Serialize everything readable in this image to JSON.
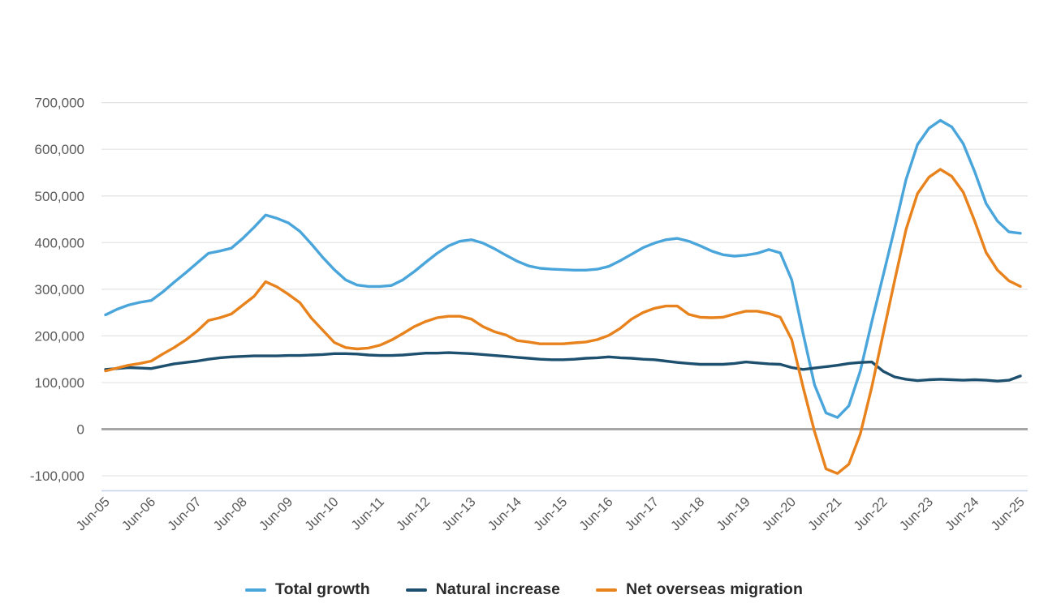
{
  "page": {
    "background_color": "#ffffff"
  },
  "chart_data": {
    "type": "line",
    "title": "",
    "xlabel": "",
    "ylabel": "",
    "frequency": "quarterly",
    "x_start": "Jun-05",
    "x_end": "Jun-25",
    "x_tick_labels": [
      "Jun-05",
      "Jun-06",
      "Jun-07",
      "Jun-08",
      "Jun-09",
      "Jun-10",
      "Jun-11",
      "Jun-12",
      "Jun-13",
      "Jun-14",
      "Jun-15",
      "Jun-16",
      "Jun-17",
      "Jun-18",
      "Jun-19",
      "Jun-20",
      "Jun-21",
      "Jun-22",
      "Jun-23",
      "Jun-24",
      "Jun-25"
    ],
    "quarters_per_tick": 4,
    "y_ticks": [
      700000,
      600000,
      500000,
      400000,
      300000,
      200000,
      100000,
      0,
      -100000
    ],
    "y_tick_labels": [
      "700,000",
      "600,000",
      "500,000",
      "400,000",
      "300,000",
      "200,000",
      "100,000",
      "0",
      "-100,000"
    ],
    "ylim": [
      -130000,
      760000
    ],
    "grid": "horizontal",
    "legend_position": "bottom",
    "gridline_color": "#e3e3e3",
    "zero_line_color": "#a7a7a7",
    "axis_bottom_line_color": "#c5d4ea",
    "label_color": "#5a5a5a",
    "series": [
      {
        "name": "Total growth",
        "color": "#4aa5db",
        "values": [
          245000,
          257000,
          266000,
          272000,
          276000,
          294000,
          315000,
          335000,
          356000,
          377000,
          382000,
          388000,
          409000,
          433000,
          459000,
          452000,
          442000,
          424000,
          397000,
          368000,
          342000,
          320000,
          309000,
          306000,
          306000,
          308000,
          320000,
          338000,
          358000,
          377000,
          393000,
          403000,
          406000,
          399000,
          387000,
          373000,
          360000,
          350000,
          345000,
          343000,
          342000,
          341000,
          341000,
          343000,
          349000,
          361000,
          375000,
          389000,
          399000,
          406000,
          409000,
          403000,
          393000,
          382000,
          374000,
          371000,
          373000,
          377000,
          385000,
          378000,
          320000,
          205000,
          95000,
          35000,
          25000,
          50000,
          125000,
          230000,
          330000,
          430000,
          535000,
          610000,
          645000,
          662000,
          648000,
          612000,
          552000,
          484000,
          446000,
          423000,
          420000
        ]
      },
      {
        "name": "Natural increase",
        "color": "#1d4f6e",
        "values": [
          128000,
          130000,
          132000,
          131000,
          130000,
          135000,
          140000,
          143000,
          146000,
          150000,
          153000,
          155000,
          156000,
          157000,
          157000,
          157000,
          158000,
          158000,
          159000,
          160000,
          162000,
          162000,
          161000,
          159000,
          158000,
          158000,
          159000,
          161000,
          163000,
          163000,
          164000,
          163000,
          162000,
          160000,
          158000,
          156000,
          154000,
          152000,
          150000,
          149000,
          149000,
          150000,
          152000,
          153000,
          155000,
          153000,
          152000,
          150000,
          149000,
          146000,
          143000,
          141000,
          139000,
          139000,
          139000,
          141000,
          144000,
          142000,
          140000,
          139000,
          132000,
          128000,
          131000,
          134000,
          137000,
          141000,
          143000,
          144000,
          124000,
          112000,
          107000,
          104000,
          106000,
          107000,
          106000,
          105000,
          106000,
          105000,
          103000,
          105000,
          114000
        ]
      },
      {
        "name": "Net overseas migration",
        "color": "#e8821d",
        "values": [
          125000,
          131000,
          137000,
          141000,
          146000,
          161000,
          175000,
          191000,
          210000,
          233000,
          239000,
          247000,
          266000,
          285000,
          316000,
          305000,
          289000,
          271000,
          238000,
          212000,
          186000,
          175000,
          172000,
          174000,
          180000,
          191000,
          205000,
          220000,
          231000,
          239000,
          242000,
          242000,
          236000,
          220000,
          209000,
          202000,
          190000,
          187000,
          183000,
          183000,
          183000,
          185000,
          187000,
          192000,
          201000,
          216000,
          236000,
          250000,
          259000,
          264000,
          264000,
          246000,
          240000,
          239000,
          240000,
          247000,
          253000,
          253000,
          248000,
          240000,
          192000,
          90000,
          -5000,
          -85000,
          -95000,
          -75000,
          -10000,
          90000,
          205000,
          318000,
          428000,
          505000,
          540000,
          557000,
          542000,
          508000,
          446000,
          379000,
          341000,
          318000,
          306000
        ]
      }
    ]
  },
  "legend": {
    "items": [
      "Total growth",
      "Natural increase",
      "Net overseas migration"
    ]
  }
}
